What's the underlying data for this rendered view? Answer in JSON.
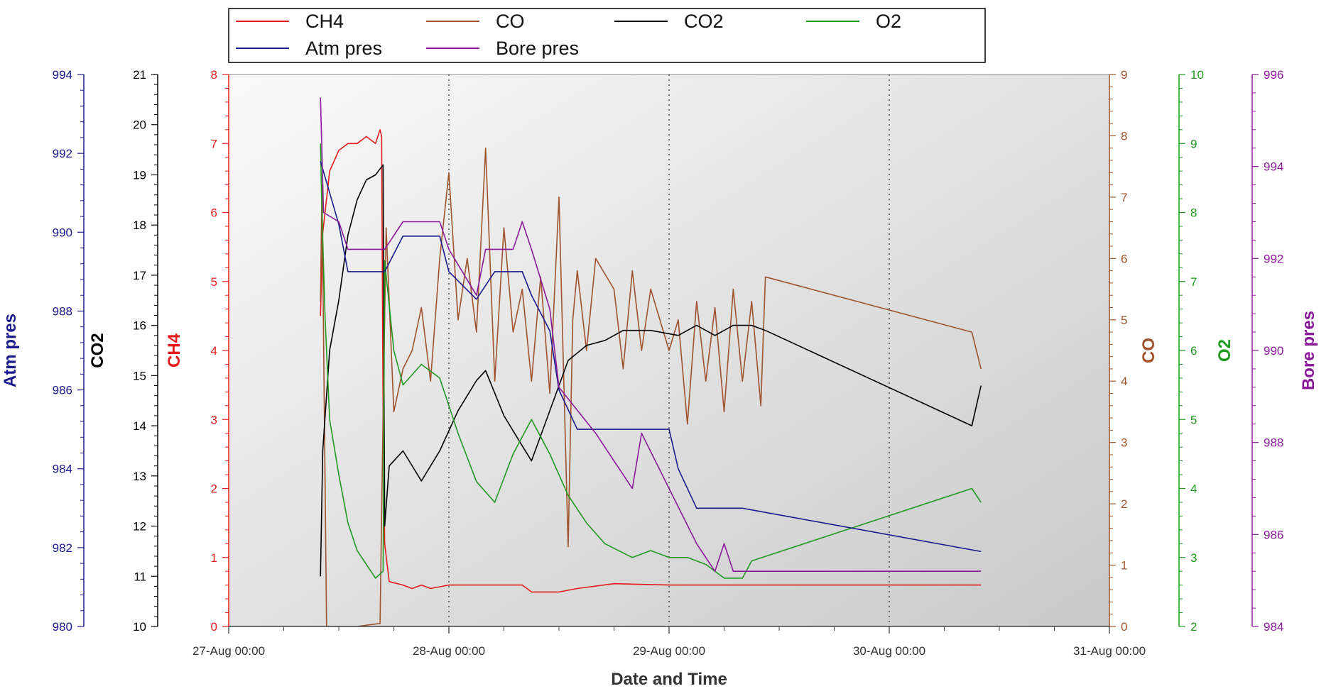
{
  "chart_data": {
    "type": "line",
    "xlabel": "Date and Time",
    "x_range": [
      "27-Aug 00:00",
      "31-Aug 00:00"
    ],
    "x_ticks": [
      "27-Aug 00:00",
      "28-Aug 00:00",
      "29-Aug 00:00",
      "30-Aug 00:00",
      "31-Aug 00:00"
    ],
    "x_minor_ticks_per_major": 4,
    "grid": "vertical dotted at major x ticks",
    "legend": {
      "placement": "top-center",
      "columns": 4
    },
    "axes": [
      {
        "id": "atm",
        "label": "Atm pres",
        "side": "left",
        "color": "#1a1a8c",
        "range": [
          980,
          994
        ],
        "ticks": [
          980,
          982,
          984,
          986,
          988,
          990,
          992,
          994
        ]
      },
      {
        "id": "co2",
        "label": "CO2",
        "side": "left",
        "color": "#000000",
        "range": [
          10,
          21
        ],
        "ticks": [
          10,
          11,
          12,
          13,
          14,
          15,
          16,
          17,
          18,
          19,
          20,
          21
        ]
      },
      {
        "id": "ch4",
        "label": "CH4",
        "side": "left",
        "color": "#e41a1c",
        "range": [
          0,
          8
        ],
        "ticks": [
          0,
          1,
          2,
          3,
          4,
          5,
          6,
          7,
          8
        ]
      },
      {
        "id": "co",
        "label": "CO",
        "side": "right",
        "color": "#a0522d",
        "range": [
          0,
          9
        ],
        "ticks": [
          0,
          1,
          2,
          3,
          4,
          5,
          6,
          7,
          8,
          9
        ]
      },
      {
        "id": "o2",
        "label": "O2",
        "side": "right",
        "color": "#1f9a1f",
        "range": [
          2,
          10
        ],
        "ticks": [
          2,
          3,
          4,
          5,
          6,
          7,
          8,
          9,
          10
        ]
      },
      {
        "id": "bore",
        "label": "Bore pres",
        "side": "right",
        "color": "#8b1a9b",
        "range": [
          984,
          996
        ],
        "ticks": [
          984,
          986,
          988,
          990,
          992,
          994,
          996
        ]
      }
    ],
    "series": [
      {
        "name": "CH4",
        "axis": "ch4",
        "color": "#e41a1c",
        "points": [
          [
            "27-Aug 10:00",
            4.5
          ],
          [
            "27-Aug 10:15",
            5.7
          ],
          [
            "27-Aug 11:00",
            6.6
          ],
          [
            "27-Aug 12:00",
            6.9
          ],
          [
            "27-Aug 13:00",
            7.0
          ],
          [
            "27-Aug 14:00",
            7.0
          ],
          [
            "27-Aug 15:00",
            7.1
          ],
          [
            "27-Aug 16:00",
            7.0
          ],
          [
            "27-Aug 16:30",
            7.2
          ],
          [
            "27-Aug 16:40",
            7.1
          ],
          [
            "27-Aug 16:50",
            3.0
          ],
          [
            "27-Aug 17:00",
            1.2
          ],
          [
            "27-Aug 17:30",
            0.65
          ],
          [
            "27-Aug 19:00",
            0.6
          ],
          [
            "27-Aug 20:00",
            0.55
          ],
          [
            "27-Aug 21:00",
            0.6
          ],
          [
            "27-Aug 22:00",
            0.55
          ],
          [
            "28-Aug 00:00",
            0.6
          ],
          [
            "28-Aug 08:00",
            0.6
          ],
          [
            "28-Aug 09:00",
            0.5
          ],
          [
            "28-Aug 12:00",
            0.5
          ],
          [
            "28-Aug 14:00",
            0.55
          ],
          [
            "28-Aug 18:00",
            0.62
          ],
          [
            "29-Aug 00:00",
            0.6
          ],
          [
            "29-Aug 12:00",
            0.6
          ],
          [
            "30-Aug 10:00",
            0.6
          ]
        ]
      },
      {
        "name": "CO",
        "axis": "co",
        "color": "#a0522d",
        "points": [
          [
            "27-Aug 10:00",
            5.3
          ],
          [
            "27-Aug 10:10",
            7.2
          ],
          [
            "27-Aug 10:40",
            0.0
          ],
          [
            "27-Aug 14:00",
            0.0
          ],
          [
            "27-Aug 16:30",
            0.05
          ],
          [
            "27-Aug 16:50",
            3.5
          ],
          [
            "27-Aug 17:10",
            6.5
          ],
          [
            "27-Aug 18:00",
            3.5
          ],
          [
            "27-Aug 19:00",
            4.2
          ],
          [
            "27-Aug 20:00",
            4.5
          ],
          [
            "27-Aug 21:00",
            5.2
          ],
          [
            "27-Aug 22:00",
            4.0
          ],
          [
            "27-Aug 23:00",
            6.0
          ],
          [
            "28-Aug 00:00",
            7.4
          ],
          [
            "28-Aug 01:00",
            5.0
          ],
          [
            "28-Aug 02:00",
            6.0
          ],
          [
            "28-Aug 03:00",
            4.8
          ],
          [
            "28-Aug 04:00",
            7.8
          ],
          [
            "28-Aug 05:00",
            4.0
          ],
          [
            "28-Aug 06:00",
            6.5
          ],
          [
            "28-Aug 07:00",
            4.8
          ],
          [
            "28-Aug 08:00",
            5.5
          ],
          [
            "28-Aug 09:00",
            4.0
          ],
          [
            "28-Aug 10:00",
            5.7
          ],
          [
            "28-Aug 11:00",
            3.8
          ],
          [
            "28-Aug 12:00",
            7.0
          ],
          [
            "28-Aug 13:00",
            1.3
          ],
          [
            "28-Aug 13:30",
            5.0
          ],
          [
            "28-Aug 14:00",
            5.8
          ],
          [
            "28-Aug 15:00",
            4.5
          ],
          [
            "28-Aug 16:00",
            6.0
          ],
          [
            "28-Aug 18:00",
            5.5
          ],
          [
            "28-Aug 19:00",
            4.2
          ],
          [
            "28-Aug 20:00",
            5.8
          ],
          [
            "28-Aug 21:00",
            4.5
          ],
          [
            "28-Aug 22:00",
            5.5
          ],
          [
            "29-Aug 00:00",
            4.5
          ],
          [
            "29-Aug 01:00",
            5.0
          ],
          [
            "29-Aug 02:00",
            3.3
          ],
          [
            "29-Aug 03:00",
            5.3
          ],
          [
            "29-Aug 04:00",
            4.0
          ],
          [
            "29-Aug 05:00",
            5.2
          ],
          [
            "29-Aug 06:00",
            3.5
          ],
          [
            "29-Aug 07:00",
            5.5
          ],
          [
            "29-Aug 08:00",
            4.0
          ],
          [
            "29-Aug 09:00",
            5.3
          ],
          [
            "29-Aug 10:00",
            3.6
          ],
          [
            "29-Aug 10:30",
            5.7
          ],
          [
            "30-Aug 09:00",
            4.8
          ],
          [
            "30-Aug 10:00",
            4.2
          ]
        ]
      },
      {
        "name": "CO2",
        "axis": "co2",
        "color": "#000000",
        "points": [
          [
            "27-Aug 10:00",
            11.0
          ],
          [
            "27-Aug 10:15",
            13.5
          ],
          [
            "27-Aug 11:00",
            15.5
          ],
          [
            "27-Aug 12:00",
            16.5
          ],
          [
            "27-Aug 13:00",
            17.8
          ],
          [
            "27-Aug 14:00",
            18.5
          ],
          [
            "27-Aug 15:00",
            18.9
          ],
          [
            "27-Aug 16:00",
            19.0
          ],
          [
            "27-Aug 16:50",
            19.2
          ],
          [
            "27-Aug 17:00",
            12.0
          ],
          [
            "27-Aug 17:30",
            13.2
          ],
          [
            "27-Aug 19:00",
            13.5
          ],
          [
            "27-Aug 21:00",
            12.9
          ],
          [
            "27-Aug 23:00",
            13.5
          ],
          [
            "28-Aug 01:00",
            14.3
          ],
          [
            "28-Aug 03:00",
            14.9
          ],
          [
            "28-Aug 04:00",
            15.1
          ],
          [
            "28-Aug 06:00",
            14.2
          ],
          [
            "28-Aug 08:00",
            13.6
          ],
          [
            "28-Aug 09:00",
            13.3
          ],
          [
            "28-Aug 11:00",
            14.3
          ],
          [
            "28-Aug 13:00",
            15.3
          ],
          [
            "28-Aug 15:00",
            15.6
          ],
          [
            "28-Aug 17:00",
            15.7
          ],
          [
            "28-Aug 19:00",
            15.9
          ],
          [
            "28-Aug 22:00",
            15.9
          ],
          [
            "29-Aug 01:00",
            15.8
          ],
          [
            "29-Aug 03:00",
            16.0
          ],
          [
            "29-Aug 05:00",
            15.8
          ],
          [
            "29-Aug 07:00",
            16.0
          ],
          [
            "29-Aug 09:00",
            16.0
          ],
          [
            "29-Aug 10:30",
            15.9
          ],
          [
            "30-Aug 09:00",
            14.0
          ],
          [
            "30-Aug 10:00",
            14.8
          ]
        ]
      },
      {
        "name": "O2",
        "axis": "o2",
        "color": "#1f9a1f",
        "points": [
          [
            "27-Aug 10:00",
            9.0
          ],
          [
            "27-Aug 10:10",
            8.0
          ],
          [
            "27-Aug 10:30",
            6.5
          ],
          [
            "27-Aug 11:00",
            5.0
          ],
          [
            "27-Aug 12:00",
            4.2
          ],
          [
            "27-Aug 13:00",
            3.5
          ],
          [
            "27-Aug 14:00",
            3.1
          ],
          [
            "27-Aug 15:00",
            2.9
          ],
          [
            "27-Aug 16:00",
            2.7
          ],
          [
            "27-Aug 16:50",
            2.8
          ],
          [
            "27-Aug 17:00",
            7.3
          ],
          [
            "27-Aug 18:00",
            6.0
          ],
          [
            "27-Aug 19:00",
            5.5
          ],
          [
            "27-Aug 21:00",
            5.8
          ],
          [
            "27-Aug 23:00",
            5.6
          ],
          [
            "28-Aug 01:00",
            4.8
          ],
          [
            "28-Aug 03:00",
            4.1
          ],
          [
            "28-Aug 05:00",
            3.8
          ],
          [
            "28-Aug 07:00",
            4.5
          ],
          [
            "28-Aug 09:00",
            5.0
          ],
          [
            "28-Aug 11:00",
            4.5
          ],
          [
            "28-Aug 13:00",
            3.9
          ],
          [
            "28-Aug 15:00",
            3.5
          ],
          [
            "28-Aug 17:00",
            3.2
          ],
          [
            "28-Aug 20:00",
            3.0
          ],
          [
            "28-Aug 22:00",
            3.1
          ],
          [
            "29-Aug 00:00",
            3.0
          ],
          [
            "29-Aug 02:00",
            3.0
          ],
          [
            "29-Aug 04:00",
            2.9
          ],
          [
            "29-Aug 06:00",
            2.7
          ],
          [
            "29-Aug 08:00",
            2.7
          ],
          [
            "29-Aug 09:00",
            2.95
          ],
          [
            "30-Aug 09:00",
            4.0
          ],
          [
            "30-Aug 10:00",
            3.8
          ]
        ]
      },
      {
        "name": "Atm pres",
        "axis": "atm",
        "color": "#1a1a8c",
        "points": [
          [
            "27-Aug 10:00",
            991.8
          ],
          [
            "27-Aug 11:00",
            991.0
          ],
          [
            "27-Aug 12:00",
            990.2
          ],
          [
            "27-Aug 13:00",
            989.0
          ],
          [
            "27-Aug 17:00",
            989.0
          ],
          [
            "27-Aug 19:00",
            989.9
          ],
          [
            "27-Aug 23:00",
            989.9
          ],
          [
            "28-Aug 00:00",
            989.0
          ],
          [
            "28-Aug 03:00",
            988.3
          ],
          [
            "28-Aug 05:00",
            989.0
          ],
          [
            "28-Aug 08:00",
            989.0
          ],
          [
            "28-Aug 09:00",
            988.4
          ],
          [
            "28-Aug 11:00",
            987.5
          ],
          [
            "28-Aug 12:00",
            986.0
          ],
          [
            "28-Aug 14:00",
            985.0
          ],
          [
            "28-Aug 21:00",
            985.0
          ],
          [
            "29-Aug 00:00",
            985.0
          ],
          [
            "29-Aug 01:00",
            984.0
          ],
          [
            "29-Aug 03:00",
            983.0
          ],
          [
            "29-Aug 08:00",
            983.0
          ],
          [
            "30-Aug 10:00",
            981.9
          ]
        ]
      },
      {
        "name": "Bore pres",
        "axis": "bore",
        "color": "#8b1a9b",
        "points": [
          [
            "27-Aug 10:00",
            995.5
          ],
          [
            "27-Aug 10:20",
            993.0
          ],
          [
            "27-Aug 12:00",
            992.8
          ],
          [
            "27-Aug 13:00",
            992.2
          ],
          [
            "27-Aug 17:00",
            992.2
          ],
          [
            "27-Aug 19:00",
            992.8
          ],
          [
            "27-Aug 23:00",
            992.8
          ],
          [
            "28-Aug 00:00",
            992.2
          ],
          [
            "28-Aug 03:00",
            991.2
          ],
          [
            "28-Aug 04:00",
            992.2
          ],
          [
            "28-Aug 07:00",
            992.2
          ],
          [
            "28-Aug 08:00",
            992.8
          ],
          [
            "28-Aug 09:00",
            992.2
          ],
          [
            "28-Aug 11:00",
            990.9
          ],
          [
            "28-Aug 12:00",
            989.2
          ],
          [
            "28-Aug 16:00",
            988.2
          ],
          [
            "28-Aug 20:00",
            987.0
          ],
          [
            "28-Aug 21:00",
            988.2
          ],
          [
            "29-Aug 00:00",
            987.0
          ],
          [
            "29-Aug 03:00",
            985.8
          ],
          [
            "29-Aug 05:00",
            985.2
          ],
          [
            "29-Aug 06:00",
            985.8
          ],
          [
            "29-Aug 07:00",
            985.2
          ],
          [
            "30-Aug 10:00",
            985.2
          ]
        ]
      }
    ]
  }
}
